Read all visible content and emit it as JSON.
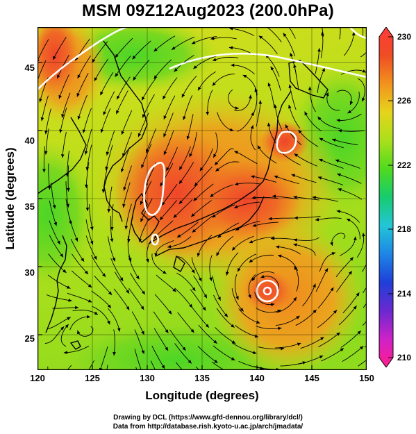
{
  "title": "MSM 09Z12Aug2023 (200.0hPa)",
  "axes": {
    "xlabel": "Longitude (degrees)",
    "ylabel": "Latitude  (degrees)",
    "xlim": [
      120,
      150
    ],
    "ylim": [
      22.4,
      47.6
    ],
    "xticks": [
      "120",
      "125",
      "130",
      "135",
      "140",
      "145",
      "150"
    ],
    "yticks": [
      "25",
      "30",
      "35",
      "40",
      "45"
    ]
  },
  "colorbar": {
    "min": 210,
    "max": 230,
    "labels": [
      "230",
      "226",
      "222",
      "218",
      "214",
      "210"
    ],
    "colors": [
      "#ff1d8e",
      "#cf22c8",
      "#6a29d0",
      "#1f3fd8",
      "#1e86e6",
      "#22c6d6",
      "#16cc6f",
      "#4fda1e",
      "#aae01b",
      "#e6d41c",
      "#f2931d",
      "#ef4c24",
      "#ff3b3b"
    ]
  },
  "map": {
    "field": "temperature (colour shading) with wind streamlines",
    "warm_core_centers": [
      {
        "lon": 131.0,
        "lat": 37.0,
        "level": "high"
      },
      {
        "lon": 142.8,
        "lat": 40.0,
        "level": "high"
      }
    ],
    "typhoon_center": {
      "lon": 140.8,
      "lat": 28.9
    }
  },
  "credits": {
    "line1": "Drawing by DCL (https://www.gfd-dennou.org/library/dcl/)",
    "line2": "Data from http://database.rish.kyoto-u.ac.jp/arch/jmadata/"
  }
}
